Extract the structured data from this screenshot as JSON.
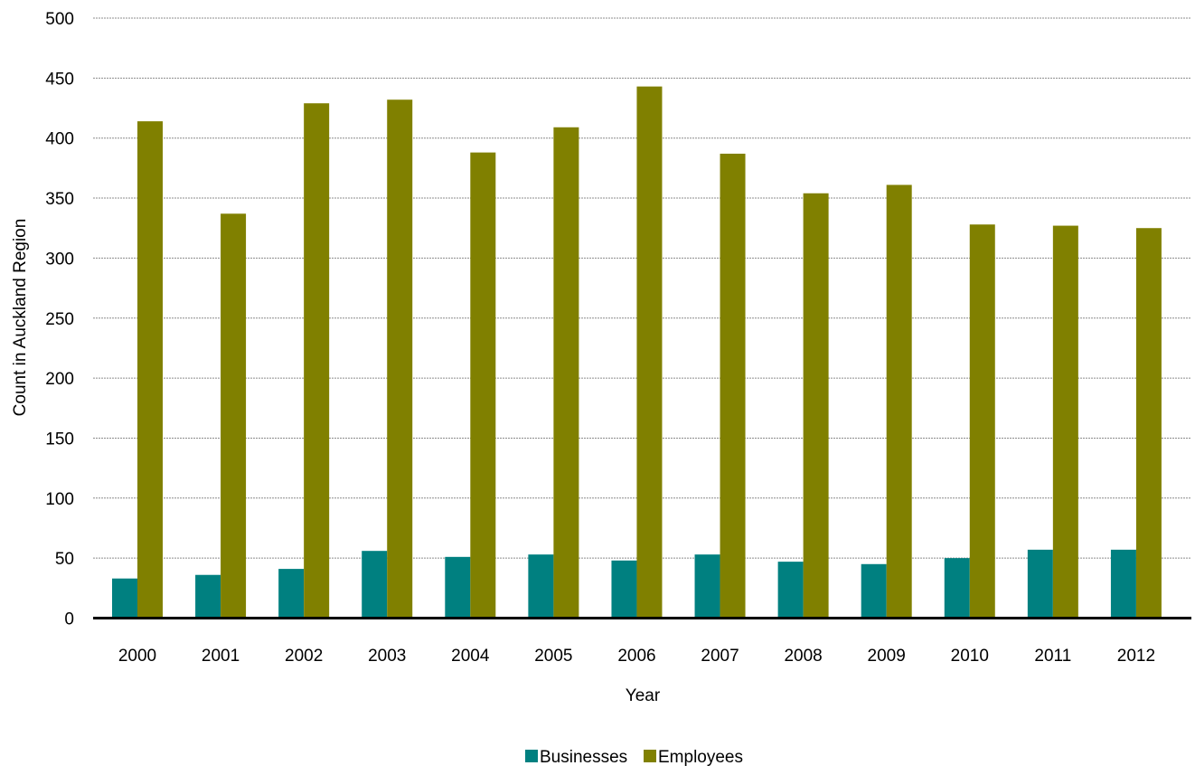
{
  "chart_data": {
    "type": "bar",
    "title": "",
    "xlabel": "Year",
    "ylabel": "Count in Auckland Region",
    "ylim": [
      0,
      500
    ],
    "yticks": [
      0,
      50,
      100,
      150,
      200,
      250,
      300,
      350,
      400,
      450,
      500
    ],
    "grid": "horizontal dashed",
    "legend_position": "bottom-center",
    "categories": [
      "2000",
      "2001",
      "2002",
      "2003",
      "2004",
      "2005",
      "2006",
      "2007",
      "2008",
      "2009",
      "2010",
      "2011",
      "2012"
    ],
    "series": [
      {
        "name": "Businesses",
        "color": "#008080",
        "values": [
          33,
          36,
          41,
          56,
          51,
          53,
          48,
          53,
          47,
          45,
          50,
          57,
          57
        ]
      },
      {
        "name": "Employees",
        "color": "#808000",
        "values": [
          414,
          337,
          429,
          432,
          388,
          409,
          443,
          387,
          354,
          361,
          328,
          327,
          325
        ]
      }
    ]
  }
}
